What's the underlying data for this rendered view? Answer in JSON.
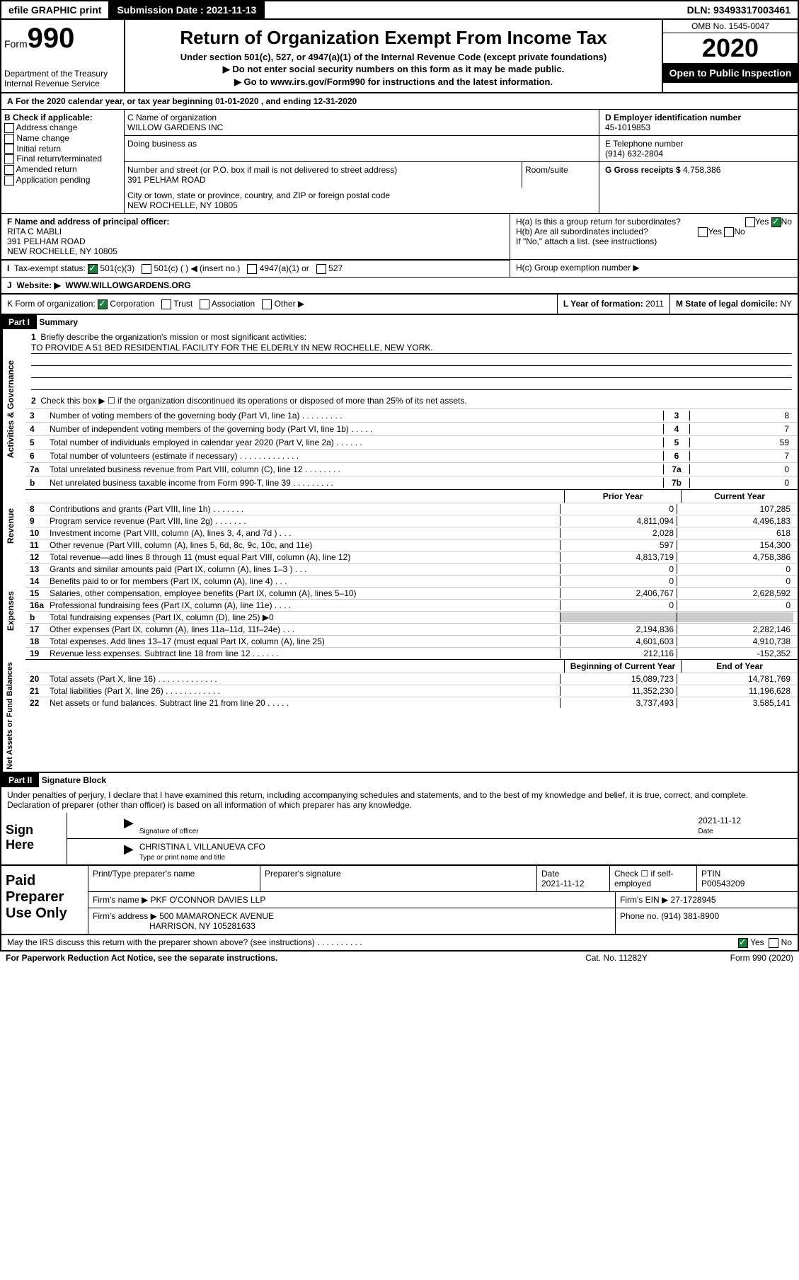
{
  "header": {
    "efile": "efile GRAPHIC print",
    "subdate_lbl": "Submission Date : 2021-11-13",
    "dln": "DLN: 93493317003461"
  },
  "top": {
    "form_lbl": "Form",
    "form_num": "990",
    "dept": "Department of the Treasury Internal Revenue Service",
    "title": "Return of Organization Exempt From Income Tax",
    "sub1": "Under section 501(c), 527, or 4947(a)(1) of the Internal Revenue Code (except private foundations)",
    "sub2": "▶ Do not enter social security numbers on this form as it may be made public.",
    "sub3": "▶ Go to www.irs.gov/Form990 for instructions and the latest information.",
    "omb": "OMB No. 1545-0047",
    "year": "2020",
    "insp": "Open to Public Inspection"
  },
  "A": {
    "period": "For the 2020 calendar year, or tax year beginning 01-01-2020   , and ending 12-31-2020"
  },
  "B": {
    "hdr": "B Check if applicable:",
    "items": [
      "Address change",
      "Name change",
      "Initial return",
      "Final return/terminated",
      "Amended return",
      "Application pending"
    ]
  },
  "C": {
    "name_lbl": "C Name of organization",
    "name": "WILLOW GARDENS INC",
    "dba_lbl": "Doing business as",
    "dba": "",
    "street_lbl": "Number and street (or P.O. box if mail is not delivered to street address)",
    "street": "391 PELHAM ROAD",
    "room_lbl": "Room/suite",
    "city_lbl": "City or town, state or province, country, and ZIP or foreign postal code",
    "city": "NEW ROCHELLE, NY  10805"
  },
  "D": {
    "lbl": "D Employer identification number",
    "val": "45-1019853"
  },
  "E": {
    "lbl": "E Telephone number",
    "val": "(914) 632-2804"
  },
  "G": {
    "lbl": "G Gross receipts $",
    "val": "4,758,386"
  },
  "F": {
    "lbl": "F  Name and address of principal officer:",
    "name": "RITA C MABLI",
    "addr1": "391 PELHAM ROAD",
    "addr2": "NEW ROCHELLE, NY  10805"
  },
  "H": {
    "a": "H(a)  Is this a group return for subordinates?",
    "b": "H(b)  Are all subordinates included?",
    "note": "If \"No,\" attach a list. (see instructions)",
    "c": "H(c)  Group exemption number ▶"
  },
  "I": {
    "lbl": "Tax-exempt status:",
    "opts": [
      "501(c)(3)",
      "501(c) (  ) ◀ (insert no.)",
      "4947(a)(1) or",
      "527"
    ]
  },
  "J": {
    "lbl": "Website: ▶",
    "val": "WWW.WILLOWGARDENS.ORG"
  },
  "K": {
    "lbl": "K Form of organization:",
    "opts": [
      "Corporation",
      "Trust",
      "Association",
      "Other ▶"
    ]
  },
  "L": {
    "lbl": "L Year of formation:",
    "val": "2011"
  },
  "M": {
    "lbl": "M State of legal domicile:",
    "val": "NY"
  },
  "part1": {
    "hdr": "Part I",
    "title": "Summary",
    "q1": "Briefly describe the organization's mission or most significant activities:",
    "mission": "TO PROVIDE A 51 BED RESIDENTIAL FACILITY FOR THE ELDERLY IN NEW ROCHELLE, NEW YORK.",
    "q2": "Check this box ▶ ☐  if the organization discontinued its operations or disposed of more than 25% of its net assets."
  },
  "gov": {
    "side": "Activities & Governance",
    "rows": [
      {
        "n": "3",
        "t": "Number of voting members of the governing body (Part VI, line 1a)   .   .   .   .   .   .   .   .   .",
        "b": "3",
        "v": "8"
      },
      {
        "n": "4",
        "t": "Number of independent voting members of the governing body (Part VI, line 1b)   .   .   .   .   .",
        "b": "4",
        "v": "7"
      },
      {
        "n": "5",
        "t": "Total number of individuals employed in calendar year 2020 (Part V, line 2a)   .   .   .   .   .   .",
        "b": "5",
        "v": "59"
      },
      {
        "n": "6",
        "t": "Total number of volunteers (estimate if necessary)   .   .   .   .   .   .   .   .   .   .   .   .   .",
        "b": "6",
        "v": "7"
      },
      {
        "n": "7a",
        "t": "Total unrelated business revenue from Part VIII, column (C), line 12   .   .   .   .   .   .   .   .",
        "b": "7a",
        "v": "0"
      },
      {
        "n": "b",
        "t": "Net unrelated business taxable income from Form 990-T, line 39   .   .   .   .   .   .   .   .   .",
        "b": "7b",
        "v": "0"
      }
    ]
  },
  "rev": {
    "side": "Revenue",
    "prior": "Prior Year",
    "curr": "Current Year",
    "rows": [
      {
        "n": "8",
        "t": "Contributions and grants (Part VIII, line 1h)   .   .   .   .   .   .   .",
        "p": "0",
        "c": "107,285"
      },
      {
        "n": "9",
        "t": "Program service revenue (Part VIII, line 2g)   .   .   .   .   .   .   .",
        "p": "4,811,094",
        "c": "4,496,183"
      },
      {
        "n": "10",
        "t": "Investment income (Part VIII, column (A), lines 3, 4, and 7d )   .   .   .",
        "p": "2,028",
        "c": "618"
      },
      {
        "n": "11",
        "t": "Other revenue (Part VIII, column (A), lines 5, 6d, 8c, 9c, 10c, and 11e)",
        "p": "597",
        "c": "154,300"
      },
      {
        "n": "12",
        "t": "Total revenue—add lines 8 through 11 (must equal Part VIII, column (A), line 12)",
        "p": "4,813,719",
        "c": "4,758,386"
      }
    ]
  },
  "exp": {
    "side": "Expenses",
    "rows": [
      {
        "n": "13",
        "t": "Grants and similar amounts paid (Part IX, column (A), lines 1–3 )   .   .   .",
        "p": "0",
        "c": "0"
      },
      {
        "n": "14",
        "t": "Benefits paid to or for members (Part IX, column (A), line 4)   .   .   .",
        "p": "0",
        "c": "0"
      },
      {
        "n": "15",
        "t": "Salaries, other compensation, employee benefits (Part IX, column (A), lines 5–10)",
        "p": "2,406,767",
        "c": "2,628,592"
      },
      {
        "n": "16a",
        "t": "Professional fundraising fees (Part IX, column (A), line 11e)   .   .   .   .",
        "p": "0",
        "c": "0"
      },
      {
        "n": "b",
        "t": "Total fundraising expenses (Part IX, column (D), line 25) ▶0",
        "p": "",
        "c": "",
        "grey": true
      },
      {
        "n": "17",
        "t": "Other expenses (Part IX, column (A), lines 11a–11d, 11f–24e)   .   .   .",
        "p": "2,194,836",
        "c": "2,282,146"
      },
      {
        "n": "18",
        "t": "Total expenses. Add lines 13–17 (must equal Part IX, column (A), line 25)",
        "p": "4,601,603",
        "c": "4,910,738"
      },
      {
        "n": "19",
        "t": "Revenue less expenses. Subtract line 18 from line 12   .   .   .   .   .   .",
        "p": "212,116",
        "c": "-152,352"
      }
    ]
  },
  "net": {
    "side": "Net Assets or Fund Balances",
    "prior": "Beginning of Current Year",
    "curr": "End of Year",
    "rows": [
      {
        "n": "20",
        "t": "Total assets (Part X, line 16)   .   .   .   .   .   .   .   .   .   .   .   .   .",
        "p": "15,089,723",
        "c": "14,781,769"
      },
      {
        "n": "21",
        "t": "Total liabilities (Part X, line 26)   .   .   .   .   .   .   .   .   .   .   .   .",
        "p": "11,352,230",
        "c": "11,196,628"
      },
      {
        "n": "22",
        "t": "Net assets or fund balances. Subtract line 21 from line 20   .   .   .   .   .",
        "p": "3,737,493",
        "c": "3,585,141"
      }
    ]
  },
  "part2": {
    "hdr": "Part II",
    "title": "Signature Block",
    "decl": "Under penalties of perjury, I declare that I have examined this return, including accompanying schedules and statements, and to the best of my knowledge and belief, it is true, correct, and complete. Declaration of preparer (other than officer) is based on all information of which preparer has any knowledge.",
    "signhere": "Sign Here",
    "sig_officer": "Signature of officer",
    "date": "2021-11-12",
    "date_lbl": "Date",
    "name": "CHRISTINA L VILLANUEVA  CFO",
    "name_lbl": "Type or print name and title"
  },
  "prep": {
    "lbl": "Paid Preparer Use Only",
    "h": [
      "Print/Type preparer's name",
      "Preparer's signature",
      "Date",
      "Check ☐ if self-employed",
      "PTIN"
    ],
    "date": "2021-11-12",
    "ptin": "P00543209",
    "firm_lbl": "Firm's name    ▶",
    "firm": "PKF O'CONNOR DAVIES LLP",
    "ein_lbl": "Firm's EIN ▶",
    "ein": "27-1728945",
    "addr_lbl": "Firm's address ▶",
    "addr1": "500 MAMARONECK AVENUE",
    "addr2": "HARRISON, NY  105281633",
    "phone_lbl": "Phone no.",
    "phone": "(914) 381-8900"
  },
  "discuss": "May the IRS discuss this return with the preparer shown above? (see instructions)   .   .   .   .   .   .   .   .   .   .",
  "foot": {
    "l": "For Paperwork Reduction Act Notice, see the separate instructions.",
    "m": "Cat. No. 11282Y",
    "r": "Form 990 (2020)"
  },
  "yes": "Yes",
  "no": "No"
}
